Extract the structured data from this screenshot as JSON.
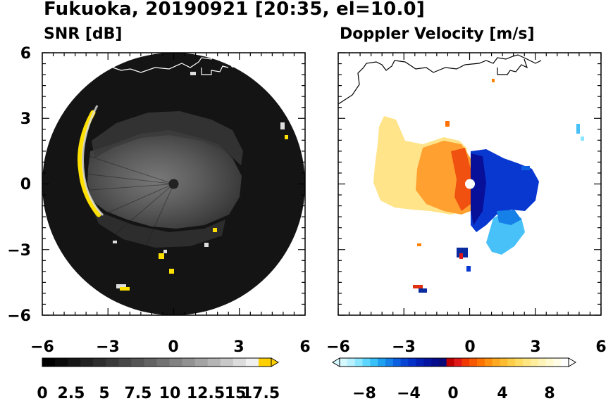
{
  "title": "Fukuoka, 20190921 [20:35, el=10.0]",
  "chart_data": [
    {
      "type": "heatmap",
      "title": "SNR [dB]",
      "x_ticks": [
        "−6",
        "−3",
        "0",
        "3",
        "6"
      ],
      "y_ticks": [
        "6",
        "3",
        "0",
        "−3",
        "−6"
      ],
      "xlim": [
        -6,
        6
      ],
      "ylim": [
        -6,
        6
      ],
      "range_ring_radius": 6,
      "colorbar": {
        "labels": [
          "0",
          "2.5",
          "5",
          "7.5",
          "10",
          "12.5",
          "15",
          "17.5"
        ],
        "min": 0,
        "max": 20,
        "step": 1.25,
        "colors": [
          "#000000",
          "#0b0b0b",
          "#161616",
          "#222222",
          "#2e2e2e",
          "#3a3a3a",
          "#474747",
          "#555555",
          "#636363",
          "#727272",
          "#828282",
          "#929292",
          "#a3a3a3",
          "#b5b5b5",
          "#c8c8c8",
          "#dcdcdc",
          "#f0f0f0",
          "#ffd000"
        ]
      },
      "colors": {
        "background_disk": "#141414",
        "echo": "#9a9a9a",
        "strong_echo": "#ffe000"
      }
    },
    {
      "type": "heatmap",
      "title": "Doppler Velocity [m/s]",
      "x_ticks": [
        "−6",
        "−3",
        "0",
        "3",
        "6"
      ],
      "y_ticks": [
        "6",
        "3",
        "0",
        "−3",
        "−6"
      ],
      "xlim": [
        -6,
        6
      ],
      "ylim": [
        -6,
        6
      ],
      "colorbar": {
        "labels": [
          "−8",
          "−4",
          "0",
          "4",
          "8"
        ],
        "label_values": [
          -8,
          -4,
          0,
          4,
          8
        ],
        "min": -10,
        "max": 10,
        "step": 0.6667,
        "colors": [
          "#d6f8ff",
          "#b8f0ff",
          "#8ce6ff",
          "#5dd6ff",
          "#38c0f8",
          "#1ea0f0",
          "#1480e8",
          "#0c60e0",
          "#0844d4",
          "#0530c8",
          "#0420b4",
          "#0414a0",
          "#060c8c",
          "#0a0a78",
          "#c00000",
          "#e01818",
          "#f03800",
          "#f85800",
          "#ff7400",
          "#ff9010",
          "#ffa820",
          "#ffbc30",
          "#ffce48",
          "#ffdc64",
          "#ffe680",
          "#ffee9c",
          "#fff4b8",
          "#fffad0",
          "#fffde6",
          "#ffffff"
        ]
      },
      "colors": {
        "approaching": "#1040e0",
        "receding": "#ff8000",
        "coastline": "#000000"
      }
    }
  ]
}
